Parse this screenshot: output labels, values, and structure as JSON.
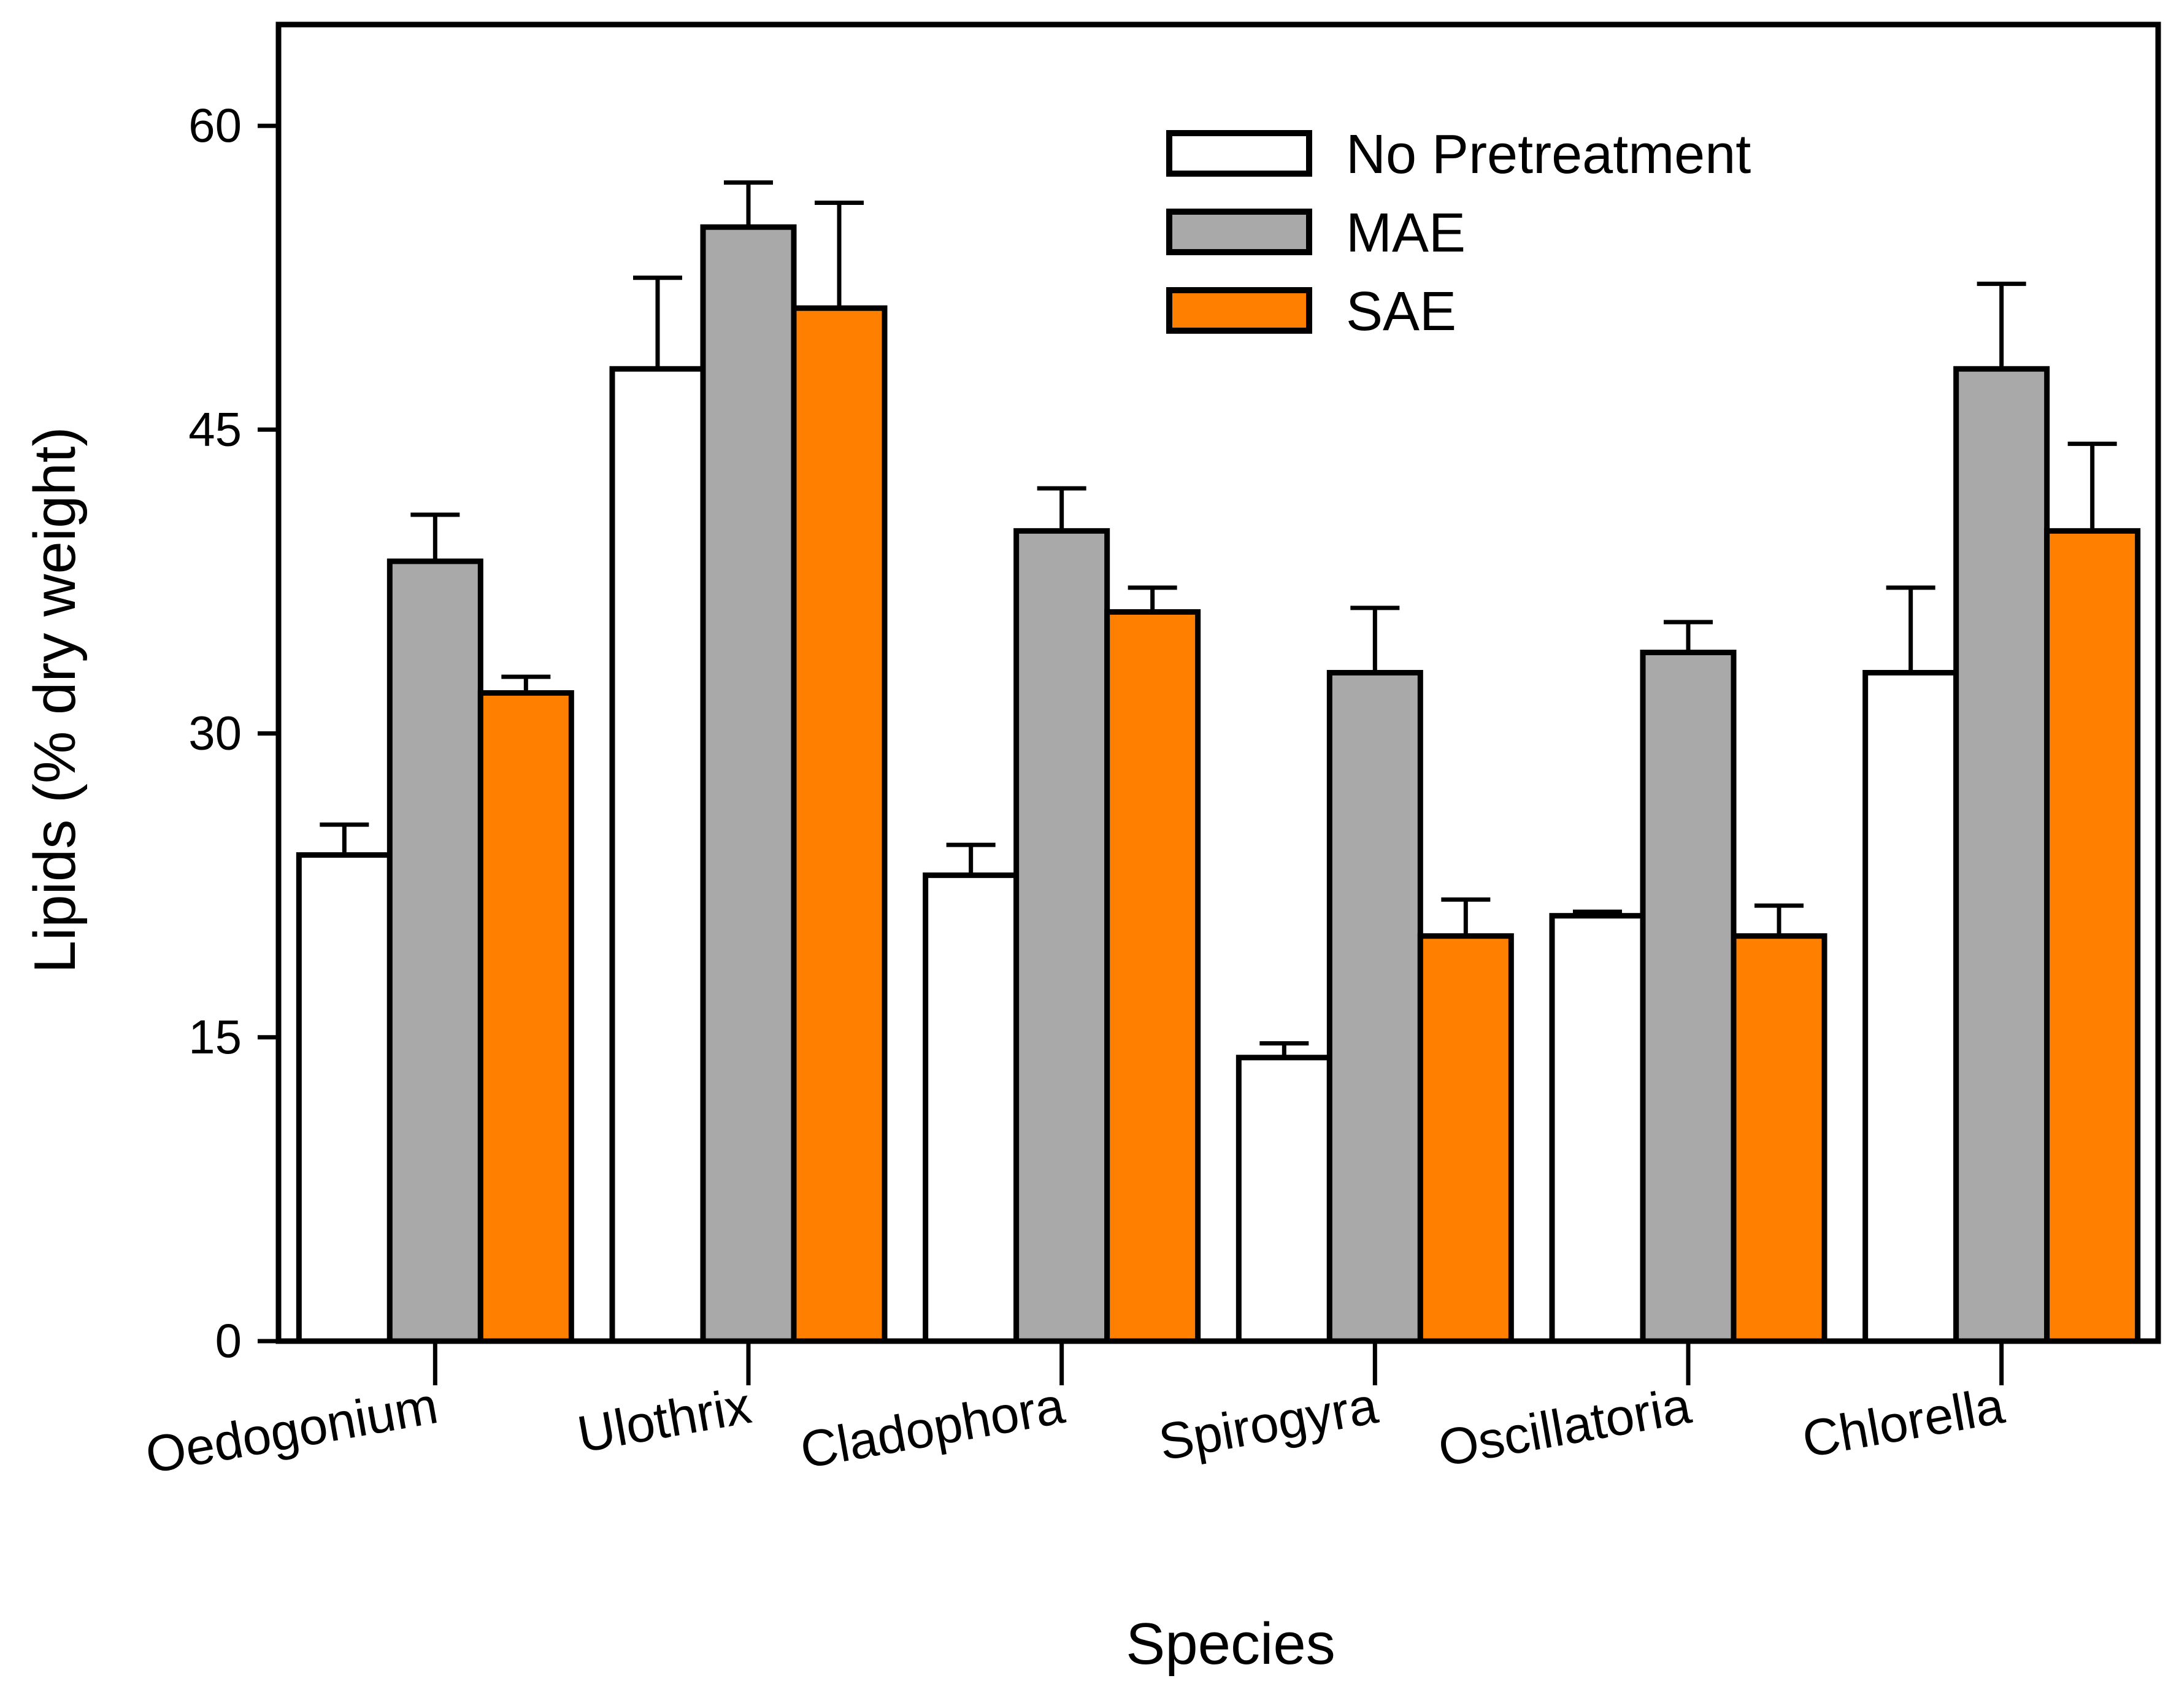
{
  "chart_data": {
    "type": "bar",
    "title": "",
    "xlabel": "Species",
    "ylabel": "Lipids (% dry weight)",
    "ylim": [
      0,
      65
    ],
    "yticks": [
      0,
      15,
      30,
      45,
      60
    ],
    "ytick_labels": [
      "0",
      "15",
      "30",
      "45",
      "60"
    ],
    "grid": false,
    "legend_position": "top-right",
    "categories": [
      "Oedogonium",
      "Ulothrix",
      "Cladophora",
      "Spirogyra",
      "Oscillatoria",
      "Chlorella"
    ],
    "series": [
      {
        "name": "No Pretreatment",
        "color": "#ffffff",
        "values": [
          24,
          48,
          23,
          14,
          21,
          33
        ],
        "errors": [
          1.5,
          4.5,
          1.5,
          0.7,
          0.2,
          4.2
        ]
      },
      {
        "name": "MAE",
        "color": "#a9a9a9",
        "values": [
          38.5,
          55,
          40,
          33,
          34,
          48
        ],
        "errors": [
          2.3,
          2.2,
          2.1,
          3.2,
          1.5,
          4.2
        ]
      },
      {
        "name": "SAE",
        "color": "#ff8000",
        "values": [
          32,
          51,
          36,
          20,
          20,
          40
        ],
        "errors": [
          0.8,
          5.2,
          1.2,
          1.8,
          1.5,
          4.3
        ]
      }
    ]
  }
}
